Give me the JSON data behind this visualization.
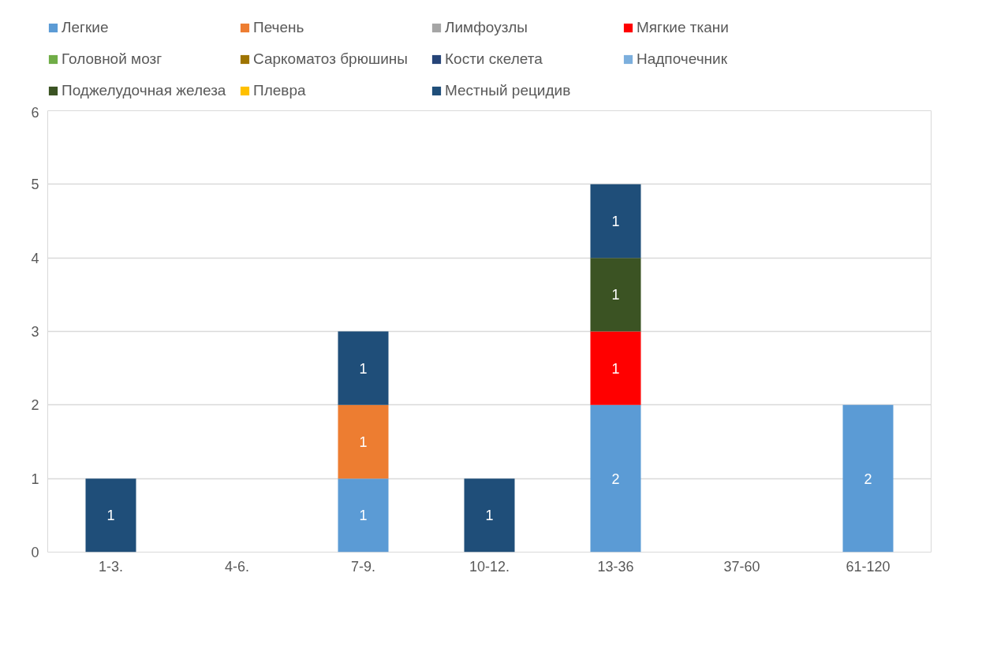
{
  "chart_data": {
    "type": "bar",
    "stacked": true,
    "categories": [
      "1-3.",
      "4-6.",
      "7-9.",
      "10-12.",
      "13-36",
      "37-60",
      "61-120"
    ],
    "series": [
      {
        "name": "Легкие",
        "color": "#5b9bd5",
        "values": [
          null,
          null,
          1,
          null,
          2,
          null,
          2
        ]
      },
      {
        "name": "Печень",
        "color": "#ed7d31",
        "values": [
          null,
          null,
          1,
          null,
          null,
          null,
          null
        ]
      },
      {
        "name": "Лимфоузлы",
        "color": "#a5a5a5",
        "values": [
          null,
          null,
          null,
          null,
          null,
          null,
          null
        ]
      },
      {
        "name": "Мягкие ткани",
        "color": "#ff0000",
        "values": [
          null,
          null,
          null,
          null,
          1,
          null,
          null
        ]
      },
      {
        "name": "Головной мозг",
        "color": "#70ad47",
        "values": [
          null,
          null,
          null,
          null,
          null,
          null,
          null
        ]
      },
      {
        "name": "Саркоматоз брюшины",
        "color": "#9e7400",
        "values": [
          null,
          null,
          null,
          null,
          null,
          null,
          null
        ]
      },
      {
        "name": "Кости скелета",
        "color": "#264478",
        "values": [
          null,
          null,
          null,
          null,
          null,
          null,
          null
        ]
      },
      {
        "name": "Надпочечник",
        "color": "#7cafdd",
        "values": [
          null,
          null,
          null,
          null,
          null,
          null,
          null
        ]
      },
      {
        "name": "Поджелудочная железа",
        "color": "#3b5323",
        "values": [
          null,
          null,
          null,
          null,
          1,
          null,
          null
        ]
      },
      {
        "name": "Плевра",
        "color": "#ffc000",
        "values": [
          null,
          null,
          null,
          null,
          null,
          null,
          null
        ]
      },
      {
        "name": "Местный рецидив",
        "color": "#1f4e79",
        "values": [
          1,
          null,
          1,
          1,
          1,
          null,
          null
        ]
      }
    ],
    "ylim": [
      0,
      6
    ],
    "yticks": [
      0,
      1,
      2,
      3,
      4,
      5,
      6
    ],
    "grid": "y",
    "legend": "top",
    "data_labels": true
  }
}
